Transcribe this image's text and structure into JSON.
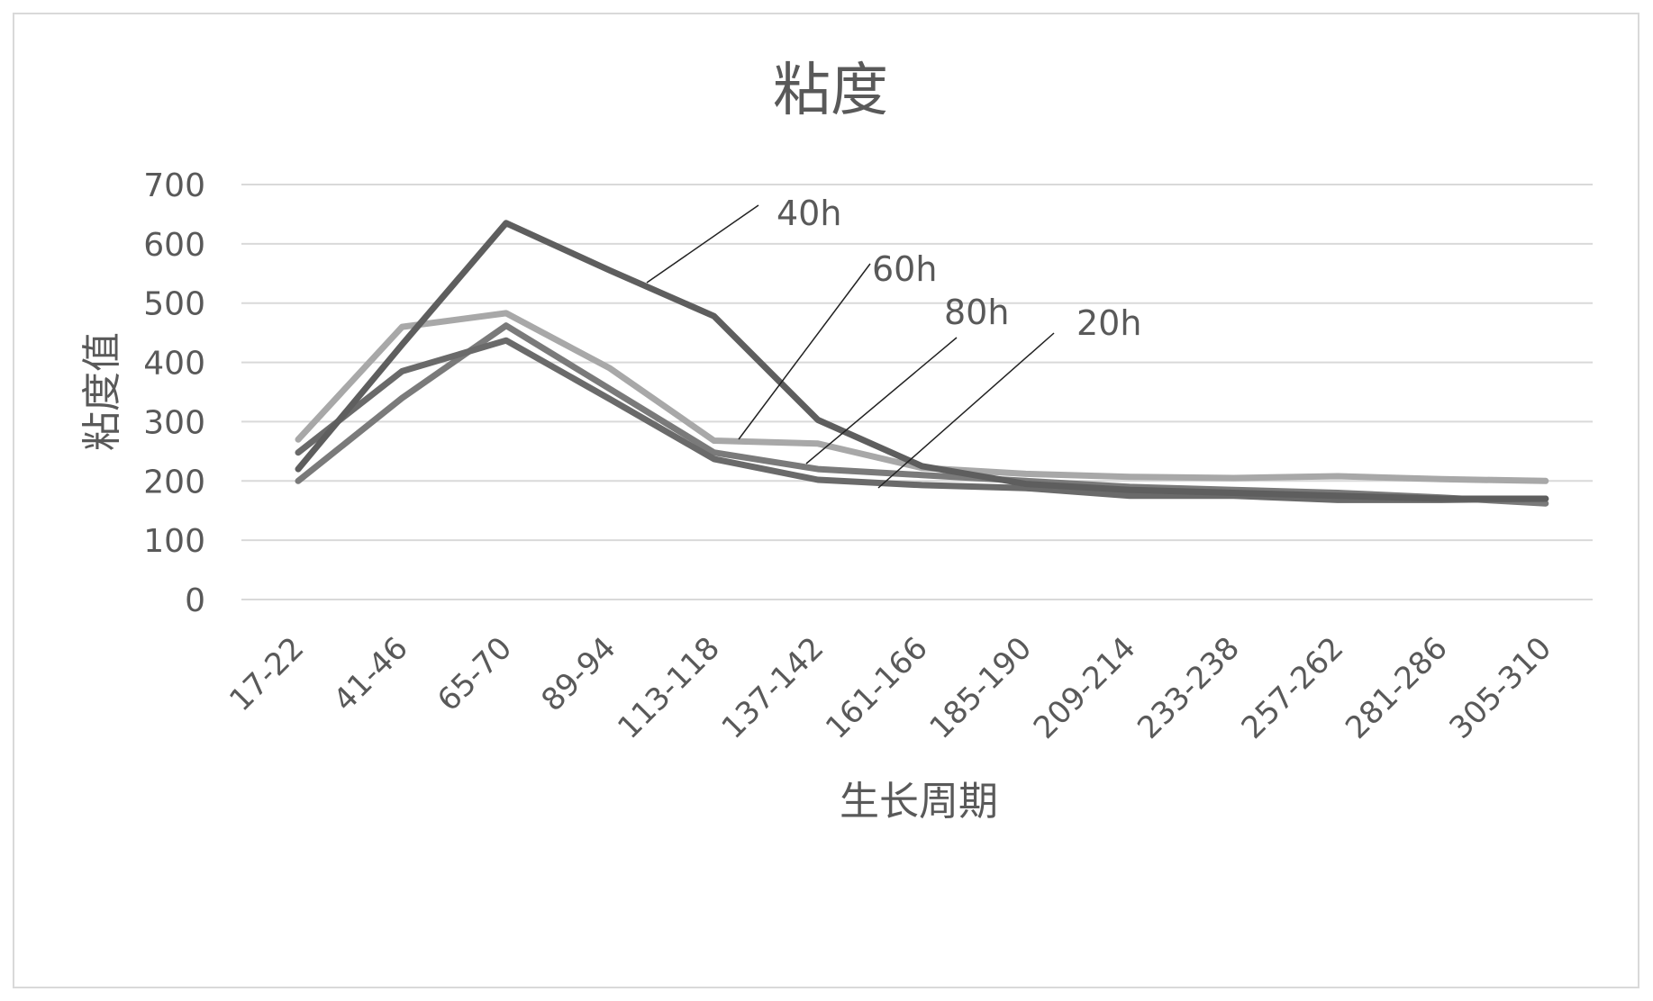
{
  "chart_data": {
    "type": "line",
    "title": "粘度",
    "xlabel": "生长周期",
    "ylabel": "粘度值",
    "ylim": [
      0,
      700
    ],
    "yticks": [
      0,
      100,
      200,
      300,
      400,
      500,
      600,
      700
    ],
    "grid": true,
    "categories": [
      "17-22",
      "41-46",
      "65-70",
      "89-94",
      "113-118",
      "137-142",
      "161-166",
      "185-190",
      "209-214",
      "233-238",
      "257-262",
      "281-286",
      "305-310"
    ],
    "series": [
      {
        "name": "40h",
        "color": "#5e5e5e",
        "values": [
          220,
          430,
          635,
          555,
          478,
          303,
          225,
          195,
          185,
          180,
          175,
          170,
          170
        ]
      },
      {
        "name": "60h",
        "color": "#a8a8a8",
        "values": [
          270,
          460,
          483,
          390,
          268,
          263,
          222,
          212,
          207,
          205,
          208,
          203,
          200
        ]
      },
      {
        "name": "80h",
        "color": "#7a7a7a",
        "values": [
          200,
          340,
          462,
          355,
          248,
          220,
          210,
          200,
          190,
          185,
          180,
          172,
          162
        ]
      },
      {
        "name": "20h",
        "color": "#6a6a6a",
        "values": [
          248,
          385,
          437,
          338,
          237,
          202,
          193,
          188,
          175,
          175,
          168,
          168,
          170
        ]
      }
    ]
  }
}
